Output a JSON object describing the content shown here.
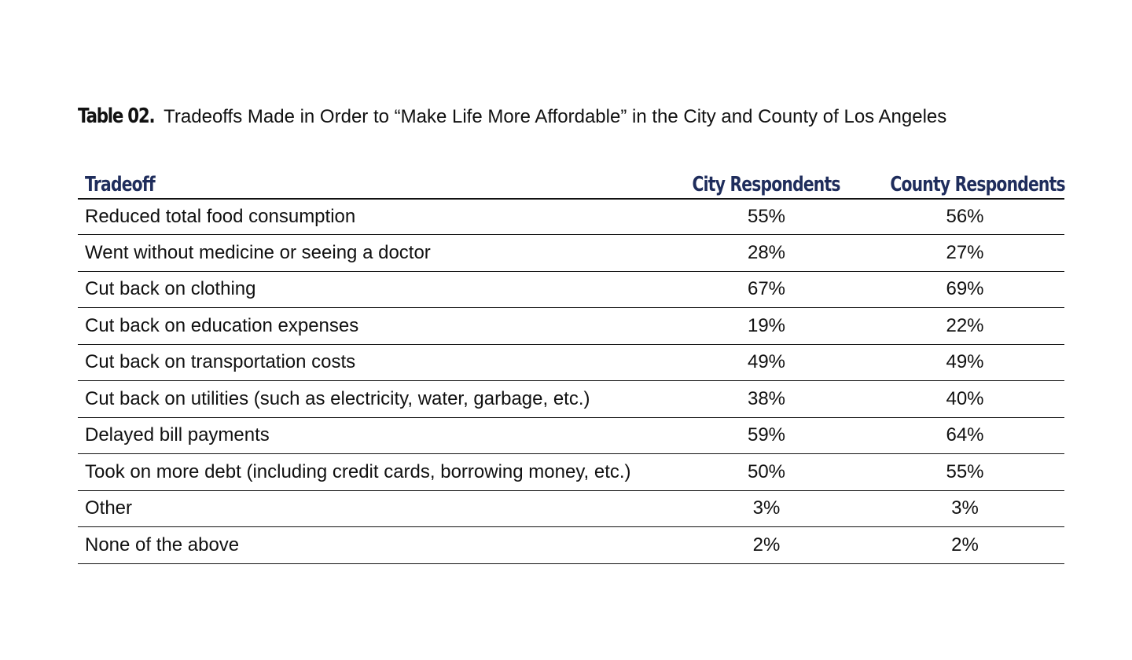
{
  "caption": {
    "label": "Table 02.",
    "text": "Tradeoffs Made in Order to “Make Life More Affordable” in the City and County of Los Angeles"
  },
  "chart_data": {
    "type": "table",
    "title": "Tradeoffs Made in Order to “Make Life More Affordable” in the City and County of Los Angeles",
    "columns": [
      "Tradeoff",
      "City Respondents",
      "County Respondents"
    ],
    "rows": [
      {
        "label": "Reduced total food consumption",
        "city": "55%",
        "county": "56%"
      },
      {
        "label": "Went without medicine or seeing a doctor",
        "city": "28%",
        "county": "27%"
      },
      {
        "label": "Cut back on clothing",
        "city": "67%",
        "county": "69%"
      },
      {
        "label": "Cut back on education expenses",
        "city": "19%",
        "county": "22%"
      },
      {
        "label": "Cut back on transportation costs",
        "city": "49%",
        "county": "49%"
      },
      {
        "label": "Cut back on utilities (such as electricity, water, garbage, etc.)",
        "city": "38%",
        "county": "40%"
      },
      {
        "label": "Delayed bill payments",
        "city": "59%",
        "county": "64%"
      },
      {
        "label": "Took on more debt (including credit cards, borrowing money, etc.)",
        "city": "50%",
        "county": "55%"
      },
      {
        "label": "Other",
        "city": "3%",
        "county": "3%"
      },
      {
        "label": "None of the above",
        "city": "2%",
        "county": "2%"
      }
    ]
  },
  "colors": {
    "header_text": "#1f2d5c",
    "body_text": "#111111",
    "rule": "#111111"
  }
}
